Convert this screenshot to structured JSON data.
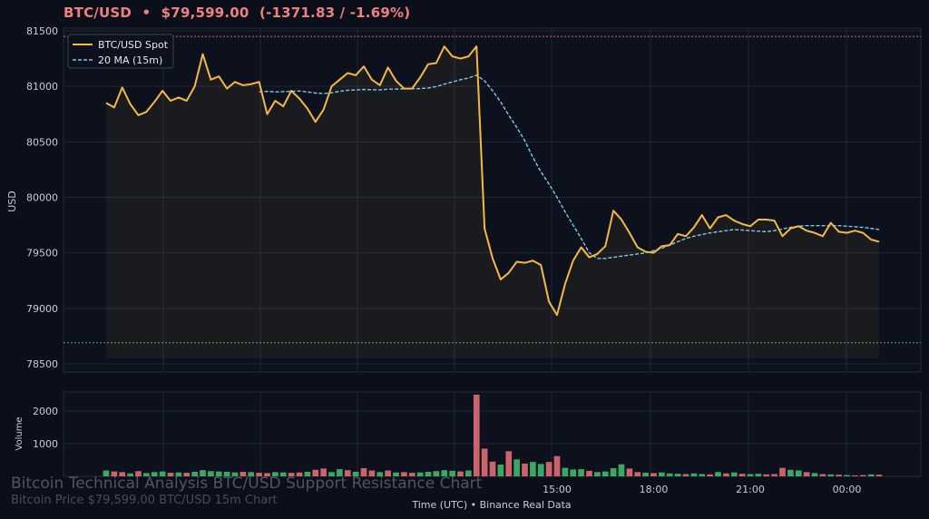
{
  "header": {
    "symbol": "BTC/USD",
    "separator": "•",
    "price": "$79,599.00",
    "change": "(-1371.83 / -1.69%)"
  },
  "overlay": {
    "title": "Bitcoin Technical Analysis BTC/USD Support Resistance Chart",
    "subtitle": "Bitcoin Price $79,599.00 BTC/USD 15m Chart"
  },
  "x_caption": "Time (UTC)  •  Binance Real Data",
  "colors": {
    "background": "#0b0f19",
    "panel": "#0d111d",
    "grid": "#1f2533",
    "price_line": "#f5b942",
    "ma_line": "#7ec8e3",
    "resistance": "#e06c75",
    "support": "#4caf50",
    "vol_up": "#3fb96a",
    "vol_down": "#e06c75"
  },
  "chart_data": [
    {
      "type": "line",
      "ylabel": "USD",
      "ylim": [
        78500,
        81500
      ],
      "yticks": [
        78500,
        79000,
        79500,
        80000,
        80500,
        81000,
        81500
      ],
      "xlim": [
        0,
        100
      ],
      "grid": true,
      "legend_placement": "top-left",
      "resistance_level": 81450,
      "support_level": 78690,
      "series": [
        {
          "name": "BTC/USD Spot",
          "style": "solid",
          "x": [
            0,
            1,
            2,
            3,
            4,
            5,
            6,
            7,
            8,
            9,
            10,
            11,
            12,
            13,
            14,
            15,
            16,
            17,
            18,
            19,
            20,
            21,
            22,
            23,
            24,
            25,
            26,
            27,
            28,
            29,
            30,
            31,
            32,
            33,
            34,
            35,
            36,
            37,
            38,
            39,
            40,
            41,
            42,
            43,
            44,
            45,
            46,
            47,
            48,
            49,
            50,
            51,
            52,
            53,
            54,
            55,
            56,
            57,
            58,
            59,
            60,
            61,
            62,
            63,
            64,
            65,
            66,
            67,
            68,
            69,
            70,
            71,
            72,
            73,
            74,
            75,
            76,
            77,
            78,
            79,
            80,
            81,
            82,
            83,
            84,
            85,
            86,
            87,
            88,
            89,
            90,
            91,
            92,
            93,
            94,
            95,
            96
          ],
          "values": [
            80850,
            80810,
            80990,
            80840,
            80740,
            80770,
            80860,
            80960,
            80870,
            80900,
            80870,
            81000,
            81290,
            81060,
            81090,
            80980,
            81040,
            81010,
            81020,
            81040,
            80750,
            80870,
            80820,
            80960,
            80890,
            80800,
            80680,
            80790,
            81000,
            81060,
            81120,
            81100,
            81180,
            81060,
            81010,
            81170,
            81050,
            80980,
            80980,
            81080,
            81200,
            81210,
            81360,
            81270,
            81250,
            81270,
            81360,
            79720,
            79450,
            79260,
            79320,
            79420,
            79410,
            79430,
            79390,
            79060,
            78940,
            79220,
            79430,
            79550,
            79460,
            79490,
            79560,
            79880,
            79800,
            79680,
            79550,
            79510,
            79500,
            79560,
            79570,
            79670,
            79650,
            79730,
            79840,
            79720,
            79820,
            79840,
            79790,
            79760,
            79740,
            79800,
            79800,
            79790,
            79650,
            79720,
            79740,
            79700,
            79680,
            79650,
            79770,
            79690,
            79680,
            79700,
            79680,
            79620,
            79600
          ]
        },
        {
          "name": "20 MA (15m)",
          "style": "dashed",
          "x": [
            19,
            20,
            21,
            22,
            23,
            24,
            25,
            26,
            27,
            28,
            29,
            30,
            31,
            32,
            33,
            34,
            35,
            36,
            37,
            38,
            39,
            40,
            41,
            42,
            43,
            44,
            45,
            46,
            47,
            48,
            49,
            50,
            51,
            52,
            53,
            54,
            55,
            56,
            57,
            58,
            59,
            60,
            61,
            62,
            63,
            64,
            65,
            66,
            67,
            68,
            69,
            70,
            71,
            72,
            73,
            74,
            75,
            76,
            77,
            78,
            79,
            80,
            81,
            82,
            83,
            84,
            85,
            86,
            87,
            88,
            89,
            90,
            91,
            92,
            93,
            94,
            95,
            96
          ],
          "values": [
            80950,
            80955,
            80950,
            80952,
            80955,
            80958,
            80950,
            80940,
            80935,
            80942,
            80955,
            80965,
            80968,
            80972,
            80970,
            80968,
            80975,
            80975,
            80978,
            80978,
            80980,
            80985,
            80998,
            81020,
            81040,
            81060,
            81075,
            81100,
            81050,
            80960,
            80860,
            80740,
            80630,
            80510,
            80360,
            80230,
            80120,
            80000,
            79870,
            79750,
            79630,
            79500,
            79450,
            79450,
            79460,
            79470,
            79480,
            79490,
            79500,
            79520,
            79540,
            79570,
            79600,
            79630,
            79650,
            79665,
            79680,
            79690,
            79700,
            79710,
            79705,
            79700,
            79695,
            79690,
            79700,
            79715,
            79730,
            79740,
            79745,
            79745,
            79745,
            79745,
            79745,
            79740,
            79735,
            79730,
            79720,
            79710
          ]
        }
      ]
    },
    {
      "type": "bar",
      "ylabel": "Volume",
      "ylim": [
        0,
        2500
      ],
      "yticks": [
        1000,
        2000
      ],
      "xtick_labels": [
        "15:00",
        "18:00",
        "21:00",
        "00:00"
      ],
      "xtick_positions": [
        56,
        68,
        80,
        92
      ],
      "grid": true,
      "x": [
        0,
        1,
        2,
        3,
        4,
        5,
        6,
        7,
        8,
        9,
        10,
        11,
        12,
        13,
        14,
        15,
        16,
        17,
        18,
        19,
        20,
        21,
        22,
        23,
        24,
        25,
        26,
        27,
        28,
        29,
        30,
        31,
        32,
        33,
        34,
        35,
        36,
        37,
        38,
        39,
        40,
        41,
        42,
        43,
        44,
        45,
        46,
        47,
        48,
        49,
        50,
        51,
        52,
        53,
        54,
        55,
        56,
        57,
        58,
        59,
        60,
        61,
        62,
        63,
        64,
        65,
        66,
        67,
        68,
        69,
        70,
        71,
        72,
        73,
        74,
        75,
        76,
        77,
        78,
        79,
        80,
        81,
        82,
        83,
        84,
        85,
        86,
        87,
        88,
        89,
        90,
        91,
        92,
        93,
        94,
        95,
        96
      ],
      "values": [
        180,
        150,
        130,
        90,
        160,
        100,
        130,
        150,
        110,
        120,
        110,
        140,
        190,
        160,
        150,
        140,
        120,
        140,
        130,
        110,
        100,
        130,
        120,
        110,
        120,
        140,
        200,
        240,
        130,
        220,
        190,
        140,
        250,
        180,
        130,
        180,
        120,
        130,
        110,
        120,
        140,
        160,
        190,
        170,
        150,
        180,
        2500,
        850,
        450,
        360,
        770,
        520,
        390,
        440,
        380,
        440,
        620,
        260,
        210,
        220,
        170,
        130,
        150,
        250,
        370,
        240,
        130,
        110,
        100,
        120,
        90,
        80,
        70,
        90,
        70,
        60,
        130,
        90,
        120,
        80,
        70,
        80,
        60,
        70,
        260,
        200,
        180,
        130,
        100,
        70,
        60,
        50,
        40,
        30,
        40,
        60,
        50
      ],
      "direction": [
        "up",
        "down",
        "down",
        "up",
        "down",
        "up",
        "up",
        "up",
        "down",
        "up",
        "down",
        "up",
        "up",
        "up",
        "up",
        "up",
        "up",
        "down",
        "up",
        "down",
        "down",
        "up",
        "up",
        "down",
        "down",
        "up",
        "down",
        "down",
        "up",
        "up",
        "down",
        "up",
        "down",
        "down",
        "up",
        "down",
        "up",
        "down",
        "down",
        "up",
        "up",
        "up",
        "up",
        "up",
        "down",
        "up",
        "down",
        "down",
        "down",
        "up",
        "down",
        "up",
        "down",
        "up",
        "up",
        "down",
        "down",
        "up",
        "up",
        "up",
        "down",
        "up",
        "up",
        "up",
        "up",
        "down",
        "down",
        "up",
        "down",
        "up",
        "up",
        "up",
        "down",
        "up",
        "up",
        "down",
        "up",
        "down",
        "up",
        "down",
        "up",
        "up",
        "down",
        "down",
        "down",
        "up",
        "up",
        "down",
        "up",
        "down",
        "up",
        "down",
        "up",
        "down",
        "down",
        "up",
        "down"
      ]
    }
  ]
}
